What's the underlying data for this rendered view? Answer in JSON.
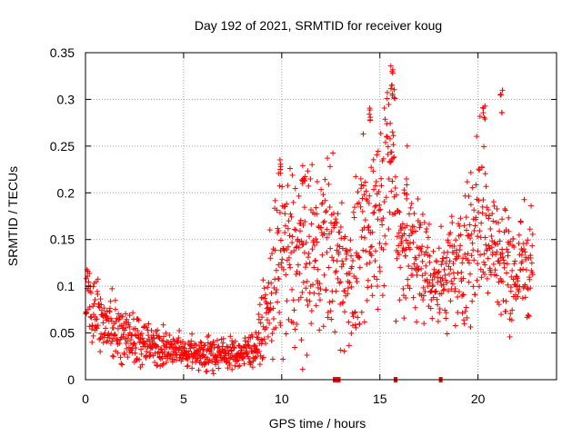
{
  "chart_data": {
    "type": "scatter",
    "title": "Day 192 of 2021, SRMTID for receiver koug",
    "xlabel": "GPS time / hours",
    "ylabel": "SRMTID / TECUs",
    "xlim": [
      0,
      24
    ],
    "ylim": [
      0,
      0.35
    ],
    "x_ticks": [
      0,
      5,
      10,
      15,
      20
    ],
    "x_tick_labels": [
      "0",
      "5",
      "10",
      "15",
      "20"
    ],
    "y_ticks": [
      0,
      0.05,
      0.1,
      0.15,
      0.2,
      0.25,
      0.3,
      0.35
    ],
    "y_tick_labels": [
      "0",
      "0.05",
      "0.1",
      "0.15",
      "0.2",
      "0.25",
      "0.3",
      "0.35"
    ],
    "grid": true,
    "marker": "+",
    "color": "#ff0000",
    "x_range_of_data": [
      0,
      22.8
    ],
    "envelope": {
      "hours": [
        0,
        0.3,
        0.6,
        1,
        2,
        3,
        4,
        5,
        6,
        7,
        8,
        8.7,
        9.2,
        9.6,
        10,
        10.5,
        11,
        11.5,
        12,
        12.5,
        13,
        13.5,
        14,
        14.5,
        15,
        15.5,
        16,
        16.5,
        17,
        17.5,
        18,
        18.5,
        19,
        19.5,
        20,
        20.5,
        21,
        21.5,
        22,
        22.5,
        22.8
      ],
      "median": [
        0.1,
        0.075,
        0.07,
        0.06,
        0.05,
        0.04,
        0.033,
        0.03,
        0.028,
        0.027,
        0.028,
        0.035,
        0.07,
        0.1,
        0.13,
        0.13,
        0.13,
        0.13,
        0.14,
        0.15,
        0.12,
        0.11,
        0.13,
        0.16,
        0.19,
        0.24,
        0.15,
        0.14,
        0.13,
        0.12,
        0.1,
        0.12,
        0.12,
        0.14,
        0.18,
        0.16,
        0.13,
        0.12,
        0.11,
        0.13,
        0.13
      ],
      "spread": [
        0.02,
        0.015,
        0.015,
        0.015,
        0.015,
        0.012,
        0.01,
        0.008,
        0.008,
        0.008,
        0.008,
        0.01,
        0.02,
        0.04,
        0.05,
        0.05,
        0.045,
        0.045,
        0.045,
        0.045,
        0.04,
        0.035,
        0.045,
        0.05,
        0.05,
        0.05,
        0.04,
        0.04,
        0.03,
        0.03,
        0.025,
        0.03,
        0.03,
        0.04,
        0.05,
        0.045,
        0.035,
        0.03,
        0.03,
        0.035,
        0.03
      ]
    },
    "peaks": [
      {
        "x": 15.6,
        "y": 0.34
      },
      {
        "x": 15.7,
        "y": 0.33
      },
      {
        "x": 14.5,
        "y": 0.3
      },
      {
        "x": 20.3,
        "y": 0.305
      },
      {
        "x": 21.2,
        "y": 0.312
      },
      {
        "x": 9.9,
        "y": 0.245
      },
      {
        "x": 11.1,
        "y": 0.235
      },
      {
        "x": 16.3,
        "y": 0.22
      }
    ],
    "gap_markers_x": [
      12.7,
      12.8,
      12.9,
      15.8,
      18.1
    ]
  }
}
